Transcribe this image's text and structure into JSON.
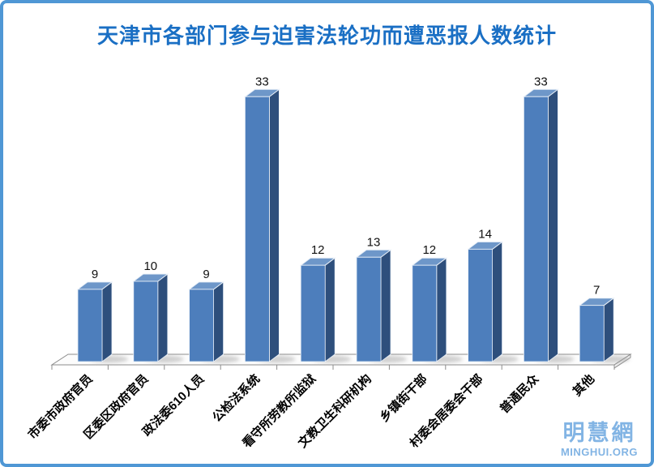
{
  "title": "天津市各部门参与迫害法轮功而遭恶报人数统计",
  "title_color": "#1a6fc4",
  "frame_color": "#4f97d5",
  "watermark": {
    "name": "明慧網",
    "site": "MINGHUI.ORG",
    "color": "#82b4e4"
  },
  "chart_data": {
    "type": "bar",
    "style": "3d-column",
    "title": "天津市各部门参与迫害法轮功而遭恶报人数统计",
    "categories": [
      "市委市政府官员",
      "区委区政府官员",
      "政法委610人员",
      "公检法系统",
      "看守所劳教所监狱",
      "文教卫生科研机构",
      "乡镇街干部",
      "村委会居委会干部",
      "普通民众",
      "其他"
    ],
    "values": [
      9,
      10,
      9,
      33,
      12,
      13,
      12,
      14,
      33,
      7
    ],
    "xlabel": "",
    "ylabel": "",
    "ylim": [
      0,
      35
    ],
    "grid": false,
    "legend": "none",
    "data_labels": true,
    "bar_colors": {
      "front": "#4d7ebc",
      "top": "#6e97c9",
      "side": "#2e4f7c",
      "edge": "#e9f0f8"
    },
    "axis_color": "#8c8c8c",
    "floor_fill": "#fcfcfc"
  }
}
